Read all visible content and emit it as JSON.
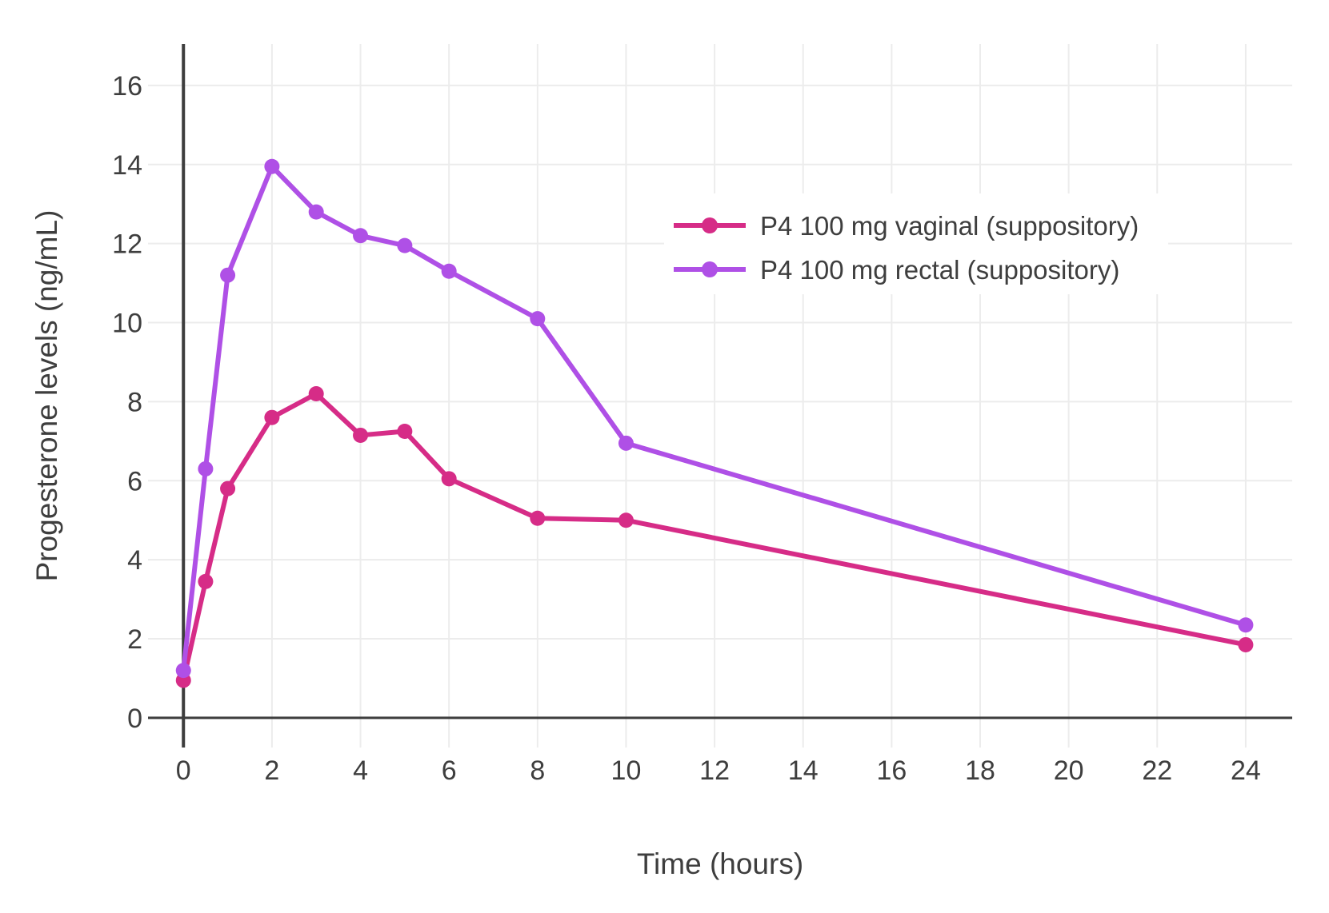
{
  "colors": {
    "background": "#ffffff",
    "grid": "#ececec",
    "axis": "#3d3d3d",
    "text": "#3e3e3e"
  },
  "chart_data": {
    "type": "line",
    "title": "",
    "xlabel": "Time (hours)",
    "ylabel": "Progesterone levels (ng/mL)",
    "x_ticks": [
      0,
      2,
      4,
      6,
      8,
      10,
      12,
      14,
      16,
      18,
      20,
      22,
      24
    ],
    "y_ticks": [
      0,
      2,
      4,
      6,
      8,
      10,
      12,
      14,
      16
    ],
    "xlim": [
      -0.8,
      25.05
    ],
    "ylim": [
      -0.75,
      17.05
    ],
    "grid": true,
    "legend_position": "inside-upper-right",
    "marker": "circle",
    "series": [
      {
        "name": "P4 100 mg vaginal (suppository)",
        "color": "#d62c87",
        "x": [
          0,
          0.5,
          1,
          2,
          3,
          4,
          5,
          6,
          8,
          10,
          24
        ],
        "y": [
          0.95,
          3.45,
          5.8,
          7.6,
          8.2,
          7.15,
          7.25,
          6.05,
          5.05,
          5.0,
          1.85
        ]
      },
      {
        "name": "P4 100 mg rectal (suppository)",
        "color": "#af50e6",
        "x": [
          0,
          0.5,
          1,
          2,
          3,
          4,
          5,
          6,
          8,
          10,
          24
        ],
        "y": [
          1.2,
          6.3,
          11.2,
          13.95,
          12.8,
          12.2,
          11.95,
          11.3,
          10.1,
          6.95,
          2.35
        ]
      }
    ]
  }
}
